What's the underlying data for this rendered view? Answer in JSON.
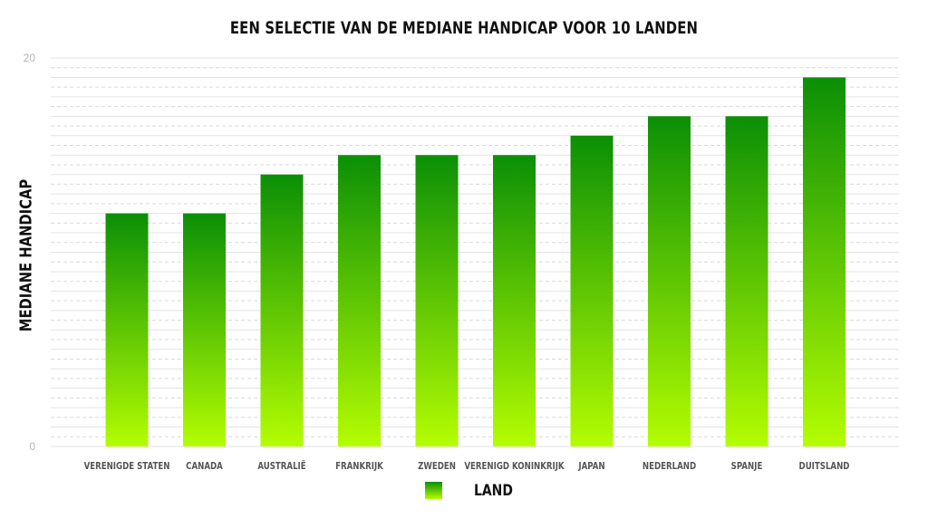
{
  "chart_data": {
    "type": "bar",
    "title": "EEN SELECTIE VAN DE MEDIANE HANDICAP VOOR 10 LANDEN",
    "xlabel": "",
    "ylabel": "MEDIANE HANDICAP",
    "categories": [
      "VERENIGDE STATEN",
      "CANADA",
      "AUSTRALIË",
      "FRANKRIJK",
      "ZWEDEN",
      "VERENIGD KONINKRIJK",
      "JAPAN",
      "NEDERLAND",
      "SPANJE",
      "DUITSLAND"
    ],
    "series": [
      {
        "name": "LAND",
        "values": [
          12,
          12,
          14,
          15,
          15,
          15,
          16,
          17,
          17,
          19
        ]
      }
    ],
    "ylim": [
      0,
      20
    ],
    "yticks": [
      "0",
      "20"
    ],
    "grid": true,
    "legend_position": "bottom-center",
    "colors": {
      "bar_top": "#0b8f06",
      "bar_bottom": "#b4fd02",
      "grid_solid": "#e3e3e3",
      "grid_dashed": "#d9d9d9"
    }
  }
}
